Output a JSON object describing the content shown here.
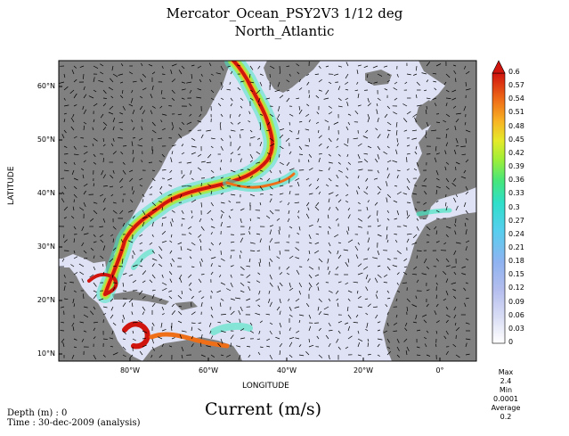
{
  "header": {
    "title_line1": "Mercator_Ocean_PSY2V3 1/12 deg",
    "title_line2": "North_Atlantic"
  },
  "axes": {
    "ylabel": "LATITUDE",
    "xlabel": "LONGITUDE",
    "y_ticks": [
      "60°N",
      "50°N",
      "40°N",
      "30°N",
      "20°N",
      "10°N"
    ],
    "x_ticks": [
      "80°W",
      "60°W",
      "40°W",
      "20°W",
      "0°"
    ]
  },
  "colorbar": {
    "ticks": [
      "0.6",
      "0.57",
      "0.54",
      "0.51",
      "0.48",
      "0.45",
      "0.42",
      "0.39",
      "0.36",
      "0.33",
      "0.3",
      "0.27",
      "0.24",
      "0.21",
      "0.18",
      "0.15",
      "0.12",
      "0.09",
      "0.06",
      "0.03",
      "0"
    ],
    "min": 0,
    "max": 0.6,
    "colors": [
      "#ffffff",
      "#e3e6f7",
      "#c6cdef",
      "#a9b6ec",
      "#8fb0ef",
      "#6fc8ef",
      "#42d9e8",
      "#2ee0c6",
      "#3ee68e",
      "#7cea4d",
      "#c3ec2c",
      "#f0e629",
      "#f9b323",
      "#f57e1b",
      "#e84a14",
      "#d0140e"
    ]
  },
  "field": {
    "variable": "Current (m/s)",
    "land_color": "#808080",
    "water_color": "#dfe2f5"
  },
  "footer": {
    "depth": "Depth (m) : 0",
    "time": "Time : 30-dec-2009 (analysis)",
    "max_label": "Max",
    "max_value": "2.4",
    "min_label": "Min",
    "min_value": "0.0001",
    "average_label": "Average",
    "average_value": "0.2"
  }
}
